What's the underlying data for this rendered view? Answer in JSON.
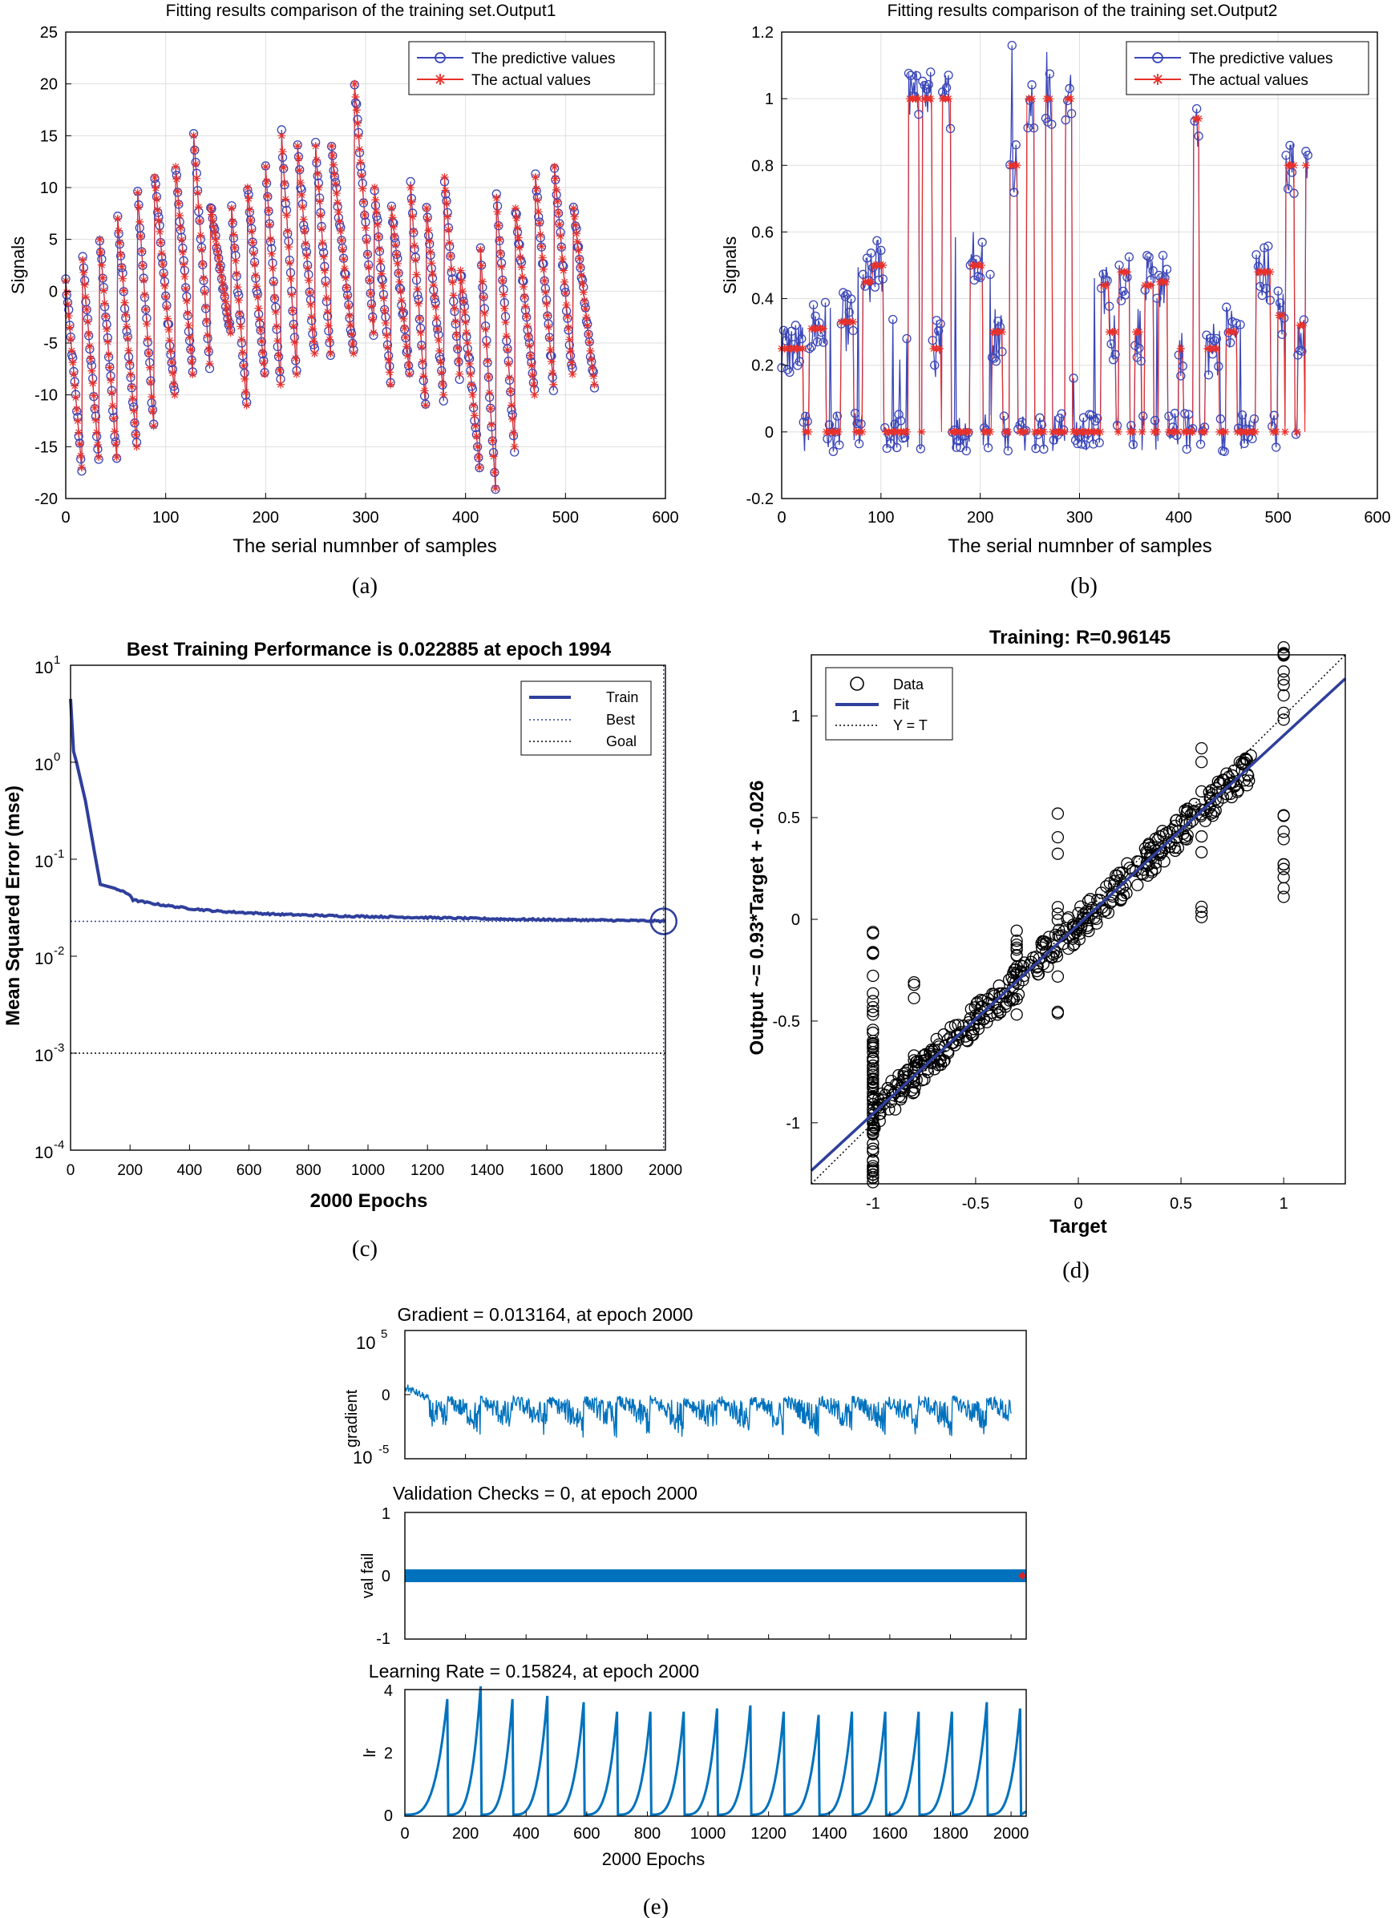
{
  "colors": {
    "pred": "#3b46b8",
    "actual": "#e8302a",
    "perf_blue": "#2f3f9c",
    "matlab_blue": "#0072bd",
    "black": "#000000",
    "grid": "#dedede",
    "red_dot": "#d62728"
  },
  "chart_data": [
    {
      "id": "a",
      "type": "line",
      "caption": "(a)",
      "title": "Fitting results comparison of the training set.Output1",
      "xlabel": "The serial numnber of samples",
      "ylabel": "Signals",
      "xlim": [
        0,
        600
      ],
      "ylim": [
        -20,
        25
      ],
      "xticks": [
        "0",
        "100",
        "200",
        "300",
        "400",
        "500",
        "600"
      ],
      "yticks": [
        "-20",
        "-15",
        "-10",
        "-5",
        "0",
        "5",
        "10",
        "15",
        "20",
        "25"
      ],
      "grid": true,
      "legend_position": "top-right",
      "legend": [
        "The predictive values",
        "The actual values"
      ],
      "series": [
        {
          "name": "The predictive values",
          "marker": "circle",
          "color": "#3b46b8"
        },
        {
          "name": "The actual values",
          "marker": "star",
          "color": "#e8302a"
        }
      ],
      "sample_count": 530,
      "cycles": [
        [
          0,
          1,
          -17
        ],
        [
          17,
          3,
          -16
        ],
        [
          34,
          5,
          -16
        ],
        [
          52,
          7,
          -15
        ],
        [
          72,
          9.5,
          -13
        ],
        [
          89,
          11,
          -10
        ],
        [
          110,
          12,
          -8
        ],
        [
          128,
          15,
          -7
        ],
        [
          145,
          8,
          -4
        ],
        [
          166,
          8,
          -11
        ],
        [
          182,
          10,
          -8
        ],
        [
          200,
          12,
          -9
        ],
        [
          216,
          15,
          -8
        ],
        [
          232,
          14,
          -6
        ],
        [
          250,
          14,
          -6
        ],
        [
          266,
          14,
          -6
        ],
        [
          289,
          20,
          -4
        ],
        [
          309,
          10,
          -9
        ],
        [
          326,
          8,
          -8
        ],
        [
          345,
          10,
          -11
        ],
        [
          361,
          8,
          -10
        ],
        [
          379,
          11,
          -8
        ],
        [
          395,
          2,
          -17
        ],
        [
          415,
          4,
          -19
        ],
        [
          431,
          9,
          -15
        ],
        [
          450,
          8,
          -10
        ],
        [
          470,
          11,
          -9
        ],
        [
          489,
          12,
          -8
        ],
        [
          508,
          8,
          -9
        ]
      ]
    },
    {
      "id": "b",
      "type": "line",
      "caption": "(b)",
      "title": "Fitting results comparison of the training set.Output2",
      "xlabel": "The serial numnber of samples",
      "ylabel": "Signals",
      "xlim": [
        0,
        600
      ],
      "ylim": [
        -0.2,
        1.2
      ],
      "xticks": [
        "0",
        "100",
        "200",
        "300",
        "400",
        "500",
        "600"
      ],
      "yticks": [
        "-0.2",
        "0",
        "0.2",
        "0.4",
        "0.6",
        "0.8",
        "1",
        "1.2"
      ],
      "grid": true,
      "legend_position": "top-right",
      "legend": [
        "The predictive values",
        "The actual values"
      ],
      "series": [
        {
          "name": "The predictive values",
          "marker": "circle",
          "color": "#3b46b8"
        },
        {
          "name": "The actual values",
          "marker": "star",
          "color": "#e8302a"
        }
      ],
      "sample_count": 530,
      "plateaus": [
        [
          0,
          22,
          0.25
        ],
        [
          22,
          28,
          0
        ],
        [
          28,
          45,
          0.31
        ],
        [
          45,
          60,
          0
        ],
        [
          60,
          72,
          0.33
        ],
        [
          82,
          92,
          0.45
        ],
        [
          92,
          102,
          0.5
        ],
        [
          128,
          138,
          1
        ],
        [
          142,
          152,
          1
        ],
        [
          152,
          160,
          0.25
        ],
        [
          162,
          170,
          1
        ],
        [
          190,
          202,
          0.5
        ],
        [
          212,
          222,
          0.3
        ],
        [
          230,
          237,
          0.8
        ],
        [
          247,
          254,
          1
        ],
        [
          266,
          272,
          1
        ],
        [
          286,
          292,
          1
        ],
        [
          302,
          312,
          0
        ],
        [
          322,
          332,
          0.44
        ],
        [
          330,
          336,
          0.3
        ],
        [
          340,
          350,
          0.48
        ],
        [
          356,
          362,
          0.3
        ],
        [
          366,
          374,
          0.44
        ],
        [
          380,
          388,
          0.45
        ],
        [
          400,
          404,
          0.25
        ],
        [
          415,
          420,
          0.94
        ],
        [
          427,
          440,
          0.25
        ],
        [
          448,
          458,
          0.3
        ],
        [
          478,
          492,
          0.48
        ],
        [
          500,
          506,
          0.35
        ],
        [
          508,
          516,
          0.8
        ],
        [
          520,
          526,
          0.32
        ],
        [
          528,
          532,
          0.8
        ]
      ],
      "spikes": [
        [
          143,
          1.02
        ],
        [
          162,
          1.02
        ],
        [
          193,
          0.6
        ],
        [
          232,
          1.16
        ],
        [
          267,
          1.14
        ],
        [
          289,
          1.02
        ],
        [
          418,
          0.97
        ],
        [
          512,
          0.86
        ],
        [
          532,
          0.8
        ]
      ]
    },
    {
      "id": "c",
      "type": "line",
      "caption": "(c)",
      "title": "Best Training Performance is 0.022885 at epoch 1994",
      "xlabel": "2000 Epochs",
      "ylabel": "Mean Squared Error  (mse)",
      "yscale": "log",
      "xlim": [
        0,
        2000
      ],
      "ylim_log10": [
        -4,
        1
      ],
      "xticks": [
        "0",
        "200",
        "400",
        "600",
        "800",
        "1000",
        "1200",
        "1400",
        "1600",
        "1800",
        "2000"
      ],
      "ytick_exponents": [
        "1",
        "0",
        "-1",
        "-2",
        "-3",
        "-4"
      ],
      "grid": false,
      "legend_position": "top-right",
      "legend": [
        "Train",
        "Best",
        "Goal"
      ],
      "best_epoch": 1994,
      "best_value": 0.022885,
      "goal": 0.001,
      "train_curve": [
        [
          0,
          4.5
        ],
        [
          10,
          1.3
        ],
        [
          20,
          1.0
        ],
        [
          50,
          0.4
        ],
        [
          80,
          0.12
        ],
        [
          100,
          0.055
        ],
        [
          150,
          0.05
        ],
        [
          200,
          0.043
        ],
        [
          210,
          0.038
        ],
        [
          250,
          0.036
        ],
        [
          300,
          0.034
        ],
        [
          400,
          0.031
        ],
        [
          500,
          0.029
        ],
        [
          700,
          0.027
        ],
        [
          900,
          0.026
        ],
        [
          1200,
          0.025
        ],
        [
          1500,
          0.024
        ],
        [
          1800,
          0.0235
        ],
        [
          2000,
          0.023
        ]
      ]
    },
    {
      "id": "d",
      "type": "scatter",
      "caption": "(d)",
      "title": "Training: R=0.96145",
      "xlabel": "Target",
      "ylabel": "Output ~= 0.93*Target + -0.026",
      "xlim": [
        -1.3,
        1.3
      ],
      "ylim": [
        -1.3,
        1.3
      ],
      "xticks": [
        "-1",
        "-0.5",
        "0",
        "0.5",
        "1"
      ],
      "yticks": [
        "1",
        "0.5",
        "0",
        "-0.5",
        "-1"
      ],
      "legend_position": "top-left",
      "legend": [
        "Data",
        "Fit",
        "Y = T"
      ],
      "fit_slope": 0.93,
      "fit_intercept": -0.026
    },
    {
      "id": "e",
      "type": "line",
      "caption": "(e)",
      "xlabel": "2000 Epochs",
      "xlim": [
        0,
        2050
      ],
      "xticks": [
        "0",
        "200",
        "400",
        "600",
        "800",
        "1000",
        "1200",
        "1400",
        "1600",
        "1800",
        "2000"
      ],
      "panels": [
        {
          "title": "Gradient = 0.013164, at epoch 2000",
          "ylabel": "gradient",
          "yscale": "log",
          "ytick_labels": [
            "10",
            "10"
          ],
          "ytick_exponents": [
            "5",
            "0",
            "-5"
          ]
        },
        {
          "title": "Validation Checks = 0, at epoch 2000",
          "ylabel": "val fail",
          "yticks": [
            "1",
            "0",
            "-1"
          ],
          "value": 0
        },
        {
          "title": "Learning Rate = 0.15824, at epoch 2000",
          "ylabel": "lr",
          "yticks": [
            "4",
            "2",
            "0"
          ],
          "lr_peaks": [
            [
              140,
              3.7
            ],
            [
              250,
              4.1
            ],
            [
              355,
              3.7
            ],
            [
              470,
              3.8
            ],
            [
              590,
              3.6
            ],
            [
              700,
              3.3
            ],
            [
              810,
              3.3
            ],
            [
              920,
              3.3
            ],
            [
              1030,
              3.4
            ],
            [
              1140,
              3.5
            ],
            [
              1250,
              3.3
            ],
            [
              1365,
              3.2
            ],
            [
              1475,
              3.3
            ],
            [
              1585,
              3.3
            ],
            [
              1695,
              3.3
            ],
            [
              1805,
              3.3
            ],
            [
              1920,
              3.6
            ],
            [
              2030,
              3.4
            ]
          ]
        }
      ]
    }
  ]
}
